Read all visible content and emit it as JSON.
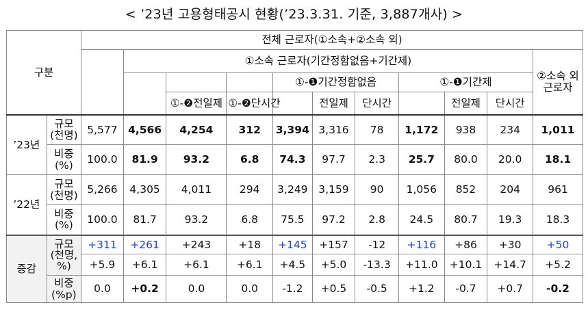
{
  "title": "< ’23년 고용형태공시 현황(’23.3.31. 기준, 3,887개사) >",
  "header": {
    "group": "구분",
    "total": "전체 근로자(①소속+②소속 외)",
    "affiliated": "①소속 근로자(기간정함없음+기간제)",
    "indefinite": "①-❶기간정함없음",
    "fixed_term": "①-❶기간제",
    "other": "②소속 외 근로자",
    "fulltime_total": "①-❷전일제",
    "parttime_total": "①-❷단시간",
    "fulltime": "전일제",
    "parttime": "단시간",
    "fulltime2": "전일제",
    "parttime2": "단시간"
  },
  "years": {
    "y23": "’23년",
    "y22": "’22년",
    "diff": "증감"
  },
  "row_labels": {
    "scale": "규모\n(천명)",
    "ratio": "비중\n(%)",
    "diff_scale": "규모\n(천명,\n%)",
    "diff_ratio": "비중\n(%p)"
  },
  "rows": {
    "y23_scale": [
      "5,577",
      "4,566",
      "4,254",
      "312",
      "3,394",
      "3,316",
      "78",
      "1,172",
      "938",
      "234",
      "1,011"
    ],
    "y23_ratio": [
      "100.0",
      "81.9",
      "93.2",
      "6.8",
      "74.3",
      "97.7",
      "2.3",
      "25.7",
      "80.0",
      "20.0",
      "18.1"
    ],
    "y22_scale": [
      "5,266",
      "4,305",
      "4,011",
      "294",
      "3,249",
      "3,159",
      "90",
      "1,056",
      "852",
      "204",
      "961"
    ],
    "y22_ratio": [
      "100.0",
      "81.7",
      "93.2",
      "6.8",
      "75.5",
      "97.2",
      "2.8",
      "24.5",
      "80.7",
      "19.3",
      "18.3"
    ],
    "diff_scale": [
      "+311",
      "+261",
      "+243",
      "+18",
      "+145",
      "+157",
      "-12",
      "+116",
      "+86",
      "+30",
      "+50"
    ],
    "diff_pct": [
      "+5.9",
      "+6.1",
      "+6.1",
      "+6.1",
      "+4.5",
      "+5.0",
      "-13.3",
      "+11.0",
      "+10.1",
      "+14.7",
      "+5.2"
    ],
    "diff_ratio": [
      "0.0",
      "+0.2",
      "0.0",
      "0.0",
      "-1.2",
      "+0.5",
      "-0.5",
      "+1.2",
      "-0.7",
      "+0.7",
      "-0.2"
    ]
  }
}
